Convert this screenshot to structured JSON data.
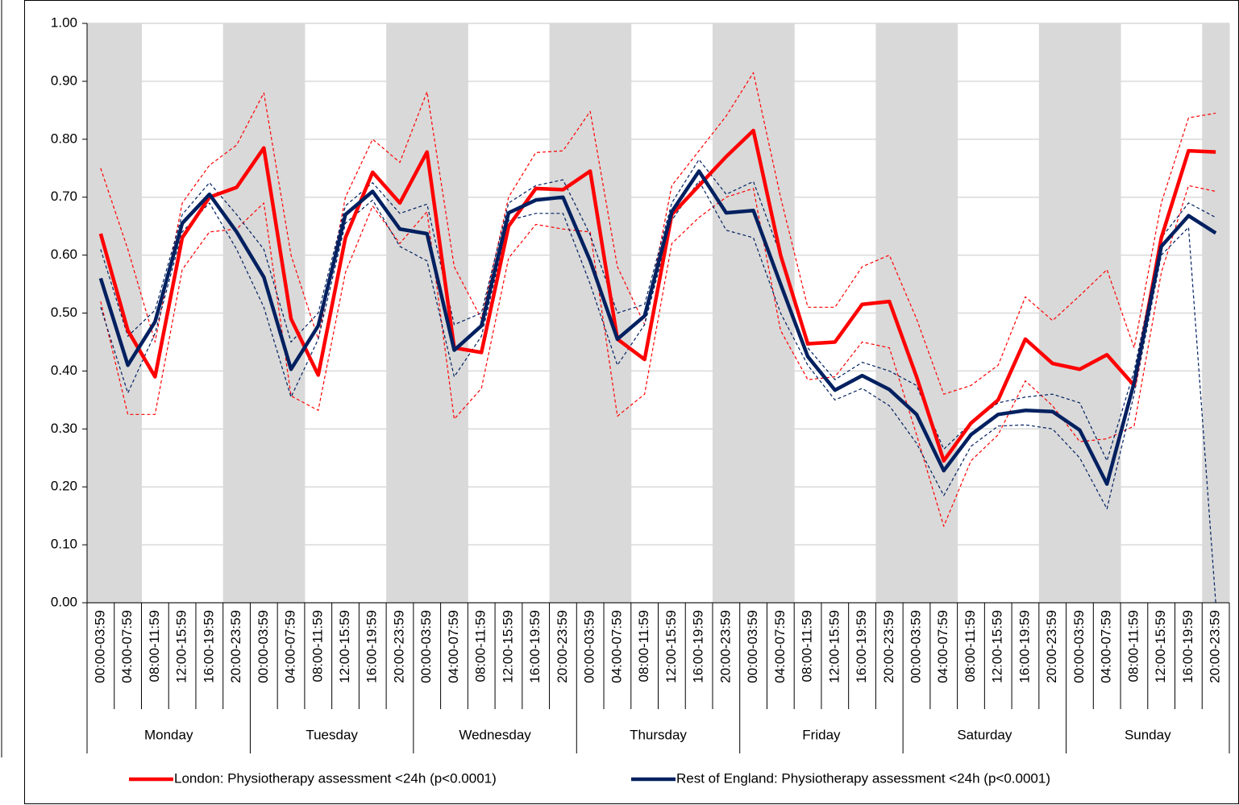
{
  "chart_data": {
    "type": "line",
    "groups": [
      "Monday",
      "Tuesday",
      "Wednesday",
      "Thursday",
      "Friday",
      "Saturday",
      "Sunday"
    ],
    "categories": [
      "00:00-03:59",
      "04:00-07:59",
      "08:00-11:59",
      "12:00-15:59",
      "16:00-19:59",
      "20:00-23:59",
      "00:00-03:59",
      "04:00-07:59",
      "08:00-11:59",
      "12:00-15:59",
      "16:00-19:59",
      "20:00-23:59",
      "00:00-03:59",
      "04:00-07:59",
      "08:00-11:59",
      "12:00-15:59",
      "16:00-19:59",
      "20:00-23:59",
      "00:00-03:59",
      "04:00-07:59",
      "08:00-11:59",
      "12:00-15:59",
      "16:00-19:59",
      "20:00-23:59",
      "00:00-03:59",
      "04:00-07:59",
      "08:00-11:59",
      "12:00-15:59",
      "16:00-19:59",
      "20:00-23:59",
      "00:00-03:59",
      "04:00-07:59",
      "08:00-11:59",
      "12:00-15:59",
      "16:00-19:59",
      "20:00-23:59",
      "00:00-03:59",
      "04:00-07:59",
      "08:00-11:59",
      "12:00-15:59",
      "16:00-19:59",
      "20:00-23:59"
    ],
    "shaded": [
      true,
      true,
      false,
      false,
      false,
      true,
      true,
      true,
      false,
      false,
      false,
      true,
      true,
      true,
      false,
      false,
      false,
      true,
      true,
      true,
      false,
      false,
      false,
      true,
      true,
      true,
      false,
      false,
      false,
      true,
      true,
      true,
      false,
      false,
      false,
      true,
      true,
      true,
      false,
      false,
      false,
      true
    ],
    "shade_color": "#d9d9d9",
    "series": [
      {
        "name": "London: Physiotherapy assessment <24h (p<0.0001)",
        "color": "#ff0000",
        "values": [
          0.637,
          0.47,
          0.39,
          0.63,
          0.7,
          0.717,
          0.785,
          0.49,
          0.393,
          0.63,
          0.743,
          0.69,
          0.778,
          0.44,
          0.432,
          0.65,
          0.715,
          0.713,
          0.745,
          0.455,
          0.42,
          0.67,
          0.72,
          0.77,
          0.815,
          0.6,
          0.447,
          0.45,
          0.515,
          0.52,
          0.39,
          0.245,
          0.31,
          0.35,
          0.455,
          0.413,
          0.403,
          0.428,
          0.375,
          0.63,
          0.78,
          0.778
        ],
        "upper": [
          0.75,
          0.61,
          0.45,
          0.69,
          0.755,
          0.79,
          0.88,
          0.6,
          0.455,
          0.7,
          0.8,
          0.76,
          0.882,
          0.58,
          0.49,
          0.7,
          0.777,
          0.78,
          0.848,
          0.58,
          0.48,
          0.72,
          0.78,
          0.84,
          0.915,
          0.7,
          0.51,
          0.51,
          0.58,
          0.6,
          0.49,
          0.36,
          0.375,
          0.41,
          0.528,
          0.487,
          0.53,
          0.575,
          0.44,
          0.69,
          0.837,
          0.845
        ],
        "lower": [
          0.52,
          0.325,
          0.325,
          0.575,
          0.64,
          0.645,
          0.69,
          0.357,
          0.332,
          0.57,
          0.685,
          0.62,
          0.675,
          0.317,
          0.37,
          0.595,
          0.653,
          0.645,
          0.64,
          0.322,
          0.36,
          0.62,
          0.665,
          0.7,
          0.715,
          0.47,
          0.385,
          0.39,
          0.45,
          0.44,
          0.29,
          0.132,
          0.245,
          0.29,
          0.383,
          0.34,
          0.278,
          0.283,
          0.305,
          0.57,
          0.72,
          0.71
        ]
      },
      {
        "name": "Rest of England: Physiotherapy assessment <24h (p<0.0001)",
        "color": "#002060",
        "values": [
          0.56,
          0.41,
          0.485,
          0.655,
          0.705,
          0.64,
          0.562,
          0.403,
          0.478,
          0.67,
          0.71,
          0.645,
          0.637,
          0.436,
          0.478,
          0.673,
          0.695,
          0.7,
          0.59,
          0.455,
          0.495,
          0.675,
          0.745,
          0.673,
          0.677,
          0.55,
          0.425,
          0.367,
          0.392,
          0.368,
          0.325,
          0.228,
          0.29,
          0.325,
          0.332,
          0.33,
          0.298,
          0.205,
          0.38,
          0.615,
          0.668,
          0.638
        ],
        "upper": [
          0.61,
          0.46,
          0.505,
          0.67,
          0.725,
          0.67,
          0.61,
          0.45,
          0.5,
          0.685,
          0.725,
          0.672,
          0.688,
          0.48,
          0.5,
          0.69,
          0.72,
          0.73,
          0.635,
          0.5,
          0.515,
          0.69,
          0.765,
          0.705,
          0.727,
          0.6,
          0.44,
          0.385,
          0.415,
          0.4,
          0.375,
          0.265,
          0.31,
          0.345,
          0.355,
          0.36,
          0.345,
          0.245,
          0.4,
          0.63,
          0.69,
          0.665
        ],
        "lower": [
          0.51,
          0.362,
          0.465,
          0.64,
          0.69,
          0.61,
          0.51,
          0.355,
          0.455,
          0.655,
          0.695,
          0.615,
          0.59,
          0.39,
          0.46,
          0.66,
          0.672,
          0.672,
          0.55,
          0.41,
          0.48,
          0.66,
          0.728,
          0.643,
          0.63,
          0.5,
          0.41,
          0.35,
          0.37,
          0.34,
          0.275,
          0.185,
          0.27,
          0.305,
          0.307,
          0.3,
          0.25,
          0.162,
          0.36,
          0.6,
          0.648,
          0.0
        ]
      }
    ],
    "ylim": [
      0,
      1
    ],
    "yticks": [
      {
        "value": 0,
        "label": "0.00"
      },
      {
        "value": 0.1,
        "label": "0.10"
      },
      {
        "value": 0.2,
        "label": "0.20"
      },
      {
        "value": 0.3,
        "label": "0.30"
      },
      {
        "value": 0.4,
        "label": "0.40"
      },
      {
        "value": 0.5,
        "label": "0.50"
      },
      {
        "value": 0.6,
        "label": "0.60"
      },
      {
        "value": 0.7,
        "label": "0.70"
      },
      {
        "value": 0.8,
        "label": "0.80"
      },
      {
        "value": 0.9,
        "label": "0.90"
      },
      {
        "value": 1,
        "label": "1.00"
      }
    ],
    "grid": true,
    "legend": "bottom"
  }
}
